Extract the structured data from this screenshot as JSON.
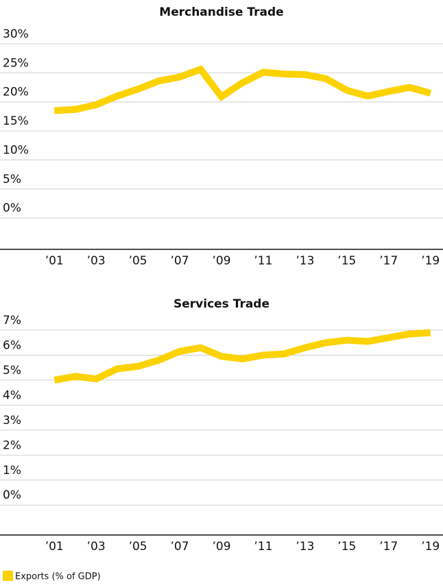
{
  "chart_data": [
    {
      "type": "line",
      "title": "Merchandise Trade",
      "x": [
        2001,
        2002,
        2003,
        2004,
        2005,
        2006,
        2007,
        2008,
        2009,
        2010,
        2011,
        2012,
        2013,
        2014,
        2015,
        2016,
        2017,
        2018,
        2019
      ],
      "series": [
        {
          "name": "Exports (% of GDP)",
          "color": "#fcd200",
          "values": [
            18.5,
            18.7,
            19.5,
            21,
            22.2,
            23.6,
            24.3,
            25.6,
            20.9,
            23.3,
            25.1,
            24.8,
            24.7,
            24,
            22,
            21,
            21.8,
            22.5,
            21.5
          ]
        }
      ],
      "xlim": [
        1998.4,
        2019.6
      ],
      "xticks": [
        {
          "value": 2001,
          "label": "’01"
        },
        {
          "value": 2003,
          "label": "’03"
        },
        {
          "value": 2005,
          "label": "’05"
        },
        {
          "value": 2007,
          "label": "’07"
        },
        {
          "value": 2009,
          "label": "’09"
        },
        {
          "value": 2011,
          "label": "’11"
        },
        {
          "value": 2013,
          "label": "’13"
        },
        {
          "value": 2015,
          "label": "’15"
        },
        {
          "value": 2017,
          "label": "’17"
        },
        {
          "value": 2019,
          "label": "’19"
        }
      ],
      "ylim": [
        -5.4,
        30
      ],
      "yticks": [
        {
          "value": 0,
          "label": "0%"
        },
        {
          "value": 5,
          "label": "5%"
        },
        {
          "value": 10,
          "label": "10%"
        },
        {
          "value": 15,
          "label": "15%"
        },
        {
          "value": 20,
          "label": "20%"
        },
        {
          "value": 25,
          "label": "25%"
        },
        {
          "value": 30,
          "label": "30%"
        }
      ],
      "grid": true
    },
    {
      "type": "line",
      "title": "Services Trade",
      "x": [
        2001,
        2002,
        2003,
        2004,
        2005,
        2006,
        2007,
        2008,
        2009,
        2010,
        2011,
        2012,
        2013,
        2014,
        2015,
        2016,
        2017,
        2018,
        2019
      ],
      "series": [
        {
          "color": "#fcd200",
          "values": [
            5.0,
            5.15,
            5.05,
            5.45,
            5.55,
            5.8,
            6.15,
            6.3,
            5.95,
            5.85,
            6.0,
            6.05,
            6.3,
            6.5,
            6.6,
            6.55,
            6.7,
            6.85,
            6.9
          ]
        }
      ],
      "xlim": [
        1998.4,
        2019.6
      ],
      "xticks": [
        {
          "value": 2001,
          "label": "’01"
        },
        {
          "value": 2003,
          "label": "’03"
        },
        {
          "value": 2005,
          "label": "’05"
        },
        {
          "value": 2007,
          "label": "’07"
        },
        {
          "value": 2009,
          "label": "’09"
        },
        {
          "value": 2011,
          "label": "’11"
        },
        {
          "value": 2013,
          "label": "’13"
        },
        {
          "value": 2015,
          "label": "’15"
        },
        {
          "value": 2017,
          "label": "’17"
        },
        {
          "value": 2019,
          "label": "’19"
        }
      ],
      "ylim": [
        -1.2,
        7
      ],
      "yticks": [
        {
          "value": 0,
          "label": "0%"
        },
        {
          "value": 1,
          "label": "1%"
        },
        {
          "value": 2,
          "label": "2%"
        },
        {
          "value": 3,
          "label": "3%"
        },
        {
          "value": 4,
          "label": "4%"
        },
        {
          "value": 5,
          "label": "5%"
        },
        {
          "value": 6,
          "label": "6%"
        },
        {
          "value": 7,
          "label": "7%"
        }
      ],
      "grid": true
    }
  ]
}
